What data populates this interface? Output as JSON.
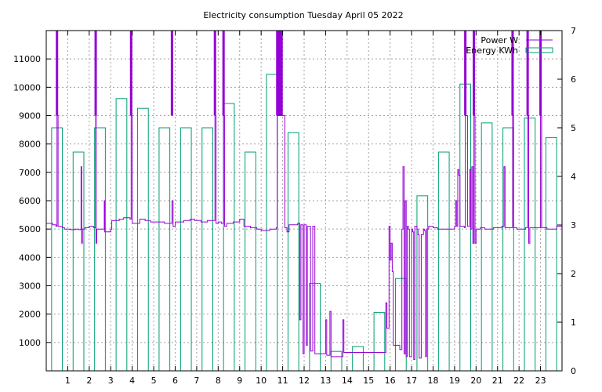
{
  "chart_data": {
    "type": "bar+line",
    "title": "Electricity consumption Tuesday April 05 2022",
    "x": {
      "range": [
        0,
        24
      ],
      "ticks": [
        1,
        2,
        3,
        4,
        5,
        6,
        7,
        8,
        9,
        10,
        11,
        12,
        13,
        14,
        15,
        16,
        17,
        18,
        19,
        20,
        21,
        22,
        23
      ],
      "labels": [
        "1",
        "2",
        "3",
        "4",
        "5",
        "6",
        "7",
        "8",
        "9",
        "10",
        "11",
        "12",
        "13",
        "14",
        "15",
        "16",
        "17",
        "18",
        "19",
        "20",
        "21",
        "22",
        "23"
      ]
    },
    "y_left": {
      "range": [
        0,
        12000
      ],
      "ticks": [
        1000,
        2000,
        3000,
        4000,
        5000,
        6000,
        7000,
        8000,
        9000,
        10000,
        11000
      ],
      "labels": [
        "1000",
        "2000",
        "3000",
        "4000",
        "5000",
        "6000",
        "7000",
        "8000",
        "9000",
        "10000",
        "11000"
      ]
    },
    "y_right": {
      "range": [
        0,
        7
      ],
      "ticks": [
        0,
        1,
        2,
        3,
        4,
        5,
        6,
        7
      ],
      "labels": [
        "0",
        "1",
        "2",
        "3",
        "4",
        "5",
        "6",
        "7"
      ]
    },
    "grid": true,
    "legend_position": "top-right",
    "series": [
      {
        "name": "Power W",
        "type": "line",
        "axis": "left",
        "color": "#9400d3",
        "points": [
          [
            0.0,
            5200
          ],
          [
            0.3,
            5150
          ],
          [
            0.45,
            5100
          ],
          [
            0.5,
            9000
          ],
          [
            0.55,
            5100
          ],
          [
            0.6,
            5100
          ],
          [
            0.75,
            5050
          ],
          [
            0.85,
            5000
          ],
          [
            1.1,
            4980
          ],
          [
            1.35,
            5000
          ],
          [
            1.5,
            4980
          ],
          [
            1.6,
            5000
          ],
          [
            1.62,
            7200
          ],
          [
            1.65,
            4500
          ],
          [
            1.68,
            5000
          ],
          [
            1.8,
            5050
          ],
          [
            2.0,
            5100
          ],
          [
            2.2,
            5050
          ],
          [
            2.3,
            9000
          ],
          [
            2.32,
            4500
          ],
          [
            2.35,
            5000
          ],
          [
            2.6,
            5000
          ],
          [
            2.7,
            6000
          ],
          [
            2.72,
            4900
          ],
          [
            3.0,
            5000
          ],
          [
            3.05,
            5300
          ],
          [
            3.4,
            5350
          ],
          [
            3.6,
            5400
          ],
          [
            3.9,
            5350
          ],
          [
            3.95,
            9000
          ],
          [
            4.0,
            5200
          ],
          [
            4.2,
            5200
          ],
          [
            4.35,
            5350
          ],
          [
            4.6,
            5300
          ],
          [
            4.85,
            5250
          ],
          [
            5.0,
            5250
          ],
          [
            5.3,
            5250
          ],
          [
            5.5,
            5200
          ],
          [
            5.8,
            5200
          ],
          [
            5.85,
            6000
          ],
          [
            5.9,
            5100
          ],
          [
            6.0,
            5250
          ],
          [
            6.4,
            5300
          ],
          [
            6.7,
            5350
          ],
          [
            6.9,
            5300
          ],
          [
            7.2,
            5250
          ],
          [
            7.5,
            5300
          ],
          [
            7.8,
            5300
          ],
          [
            7.85,
            9000
          ],
          [
            7.9,
            5200
          ],
          [
            8.0,
            5250
          ],
          [
            8.15,
            5200
          ],
          [
            8.25,
            9000
          ],
          [
            8.3,
            5100
          ],
          [
            8.4,
            5200
          ],
          [
            8.7,
            5250
          ],
          [
            9.0,
            5350
          ],
          [
            9.2,
            5100
          ],
          [
            9.5,
            5050
          ],
          [
            9.8,
            5000
          ],
          [
            10.0,
            4950
          ],
          [
            10.4,
            5000
          ],
          [
            10.7,
            5050
          ],
          [
            10.75,
            9000
          ],
          [
            11.0,
            9000
          ],
          [
            11.1,
            5050
          ],
          [
            11.2,
            4900
          ],
          [
            11.3,
            5150
          ],
          [
            11.7,
            5200
          ],
          [
            11.8,
            1800
          ],
          [
            11.85,
            5150
          ],
          [
            11.95,
            600
          ],
          [
            12.0,
            5150
          ],
          [
            12.1,
            900
          ],
          [
            12.15,
            5100
          ],
          [
            12.3,
            700
          ],
          [
            12.4,
            5100
          ],
          [
            12.5,
            600
          ],
          [
            12.8,
            600
          ],
          [
            13.0,
            1800
          ],
          [
            13.05,
            550
          ],
          [
            13.2,
            2100
          ],
          [
            13.25,
            500
          ],
          [
            13.4,
            500
          ],
          [
            13.8,
            1800
          ],
          [
            13.85,
            650
          ],
          [
            14.3,
            650
          ],
          [
            15.0,
            650
          ],
          [
            15.7,
            650
          ],
          [
            15.8,
            2400
          ],
          [
            15.85,
            1500
          ],
          [
            15.95,
            5100
          ],
          [
            16.0,
            3900
          ],
          [
            16.05,
            4500
          ],
          [
            16.1,
            3500
          ],
          [
            16.15,
            900
          ],
          [
            16.4,
            900
          ],
          [
            16.45,
            750
          ],
          [
            16.55,
            5000
          ],
          [
            16.6,
            7200
          ],
          [
            16.65,
            600
          ],
          [
            16.7,
            6000
          ],
          [
            16.75,
            500
          ],
          [
            16.8,
            5100
          ],
          [
            16.85,
            5000
          ],
          [
            16.9,
            500
          ],
          [
            17.0,
            5000
          ],
          [
            17.05,
            4900
          ],
          [
            17.1,
            400
          ],
          [
            17.15,
            5100
          ],
          [
            17.25,
            5000
          ],
          [
            17.3,
            4800
          ],
          [
            17.35,
            450
          ],
          [
            17.45,
            4800
          ],
          [
            17.55,
            5000
          ],
          [
            17.6,
            4950
          ],
          [
            17.65,
            500
          ],
          [
            17.7,
            5000
          ],
          [
            17.8,
            5100
          ],
          [
            18.0,
            5050
          ],
          [
            18.2,
            5000
          ],
          [
            18.5,
            5000
          ],
          [
            18.8,
            5000
          ],
          [
            19.0,
            5100
          ],
          [
            19.05,
            6000
          ],
          [
            19.1,
            5100
          ],
          [
            19.15,
            7100
          ],
          [
            19.2,
            6900
          ],
          [
            19.25,
            5100
          ],
          [
            19.45,
            5050
          ],
          [
            19.5,
            9000
          ],
          [
            19.6,
            5100
          ],
          [
            19.7,
            7100
          ],
          [
            19.75,
            5000
          ],
          [
            19.8,
            7200
          ],
          [
            19.85,
            4500
          ],
          [
            19.9,
            9000
          ],
          [
            19.95,
            4500
          ],
          [
            20.0,
            5000
          ],
          [
            20.2,
            5050
          ],
          [
            20.4,
            5000
          ],
          [
            20.8,
            5050
          ],
          [
            21.2,
            5100
          ],
          [
            21.3,
            7200
          ],
          [
            21.35,
            5050
          ],
          [
            21.5,
            5050
          ],
          [
            21.7,
            9000
          ],
          [
            21.75,
            5050
          ],
          [
            21.9,
            5000
          ],
          [
            22.3,
            5050
          ],
          [
            22.4,
            9000
          ],
          [
            22.45,
            4500
          ],
          [
            22.5,
            5050
          ],
          [
            22.9,
            5050
          ],
          [
            23.0,
            9000
          ],
          [
            23.05,
            5050
          ],
          [
            23.3,
            5000
          ],
          [
            23.6,
            5000
          ],
          [
            23.75,
            5100
          ],
          [
            24.0,
            5050
          ]
        ],
        "spikes": [
          {
            "x": 0.5,
            "y": 13000
          },
          {
            "x": 2.3,
            "y": 13000
          },
          {
            "x": 3.95,
            "y": 13000
          },
          {
            "x": 5.85,
            "y": 13000
          },
          {
            "x": 7.85,
            "y": 13000
          },
          {
            "x": 8.25,
            "y": 13000
          },
          {
            "x": 10.75,
            "y": 13000
          },
          {
            "x": 10.85,
            "y": 13000
          },
          {
            "x": 10.95,
            "y": 13000
          },
          {
            "x": 19.5,
            "y": 13000
          },
          {
            "x": 19.9,
            "y": 13000
          },
          {
            "x": 21.7,
            "y": 13000
          },
          {
            "x": 22.4,
            "y": 13000
          },
          {
            "x": 23.0,
            "y": 13000
          }
        ]
      },
      {
        "name": "Energy KWh",
        "type": "bar",
        "axis": "right",
        "color": "#009e73",
        "bars": [
          {
            "hour": 0,
            "value": 5.0
          },
          {
            "hour": 1,
            "value": 4.5
          },
          {
            "hour": 2,
            "value": 5.0
          },
          {
            "hour": 3,
            "value": 5.6
          },
          {
            "hour": 4,
            "value": 5.4
          },
          {
            "hour": 5,
            "value": 5.0
          },
          {
            "hour": 6,
            "value": 5.0
          },
          {
            "hour": 7,
            "value": 5.0
          },
          {
            "hour": 8,
            "value": 5.5
          },
          {
            "hour": 9,
            "value": 4.5
          },
          {
            "hour": 10,
            "value": 6.1
          },
          {
            "hour": 11,
            "value": 4.9
          },
          {
            "hour": 12,
            "value": 1.8
          },
          {
            "hour": 13,
            "value": 0.4
          },
          {
            "hour": 14,
            "value": 0.5
          },
          {
            "hour": 15,
            "value": 1.2
          },
          {
            "hour": 16,
            "value": 1.9
          },
          {
            "hour": 17,
            "value": 3.6
          },
          {
            "hour": 18,
            "value": 4.5
          },
          {
            "hour": 19,
            "value": 5.9
          },
          {
            "hour": 20,
            "value": 5.1
          },
          {
            "hour": 21,
            "value": 5.0
          },
          {
            "hour": 22,
            "value": 5.2
          },
          {
            "hour": 23,
            "value": 4.8
          }
        ]
      }
    ]
  }
}
